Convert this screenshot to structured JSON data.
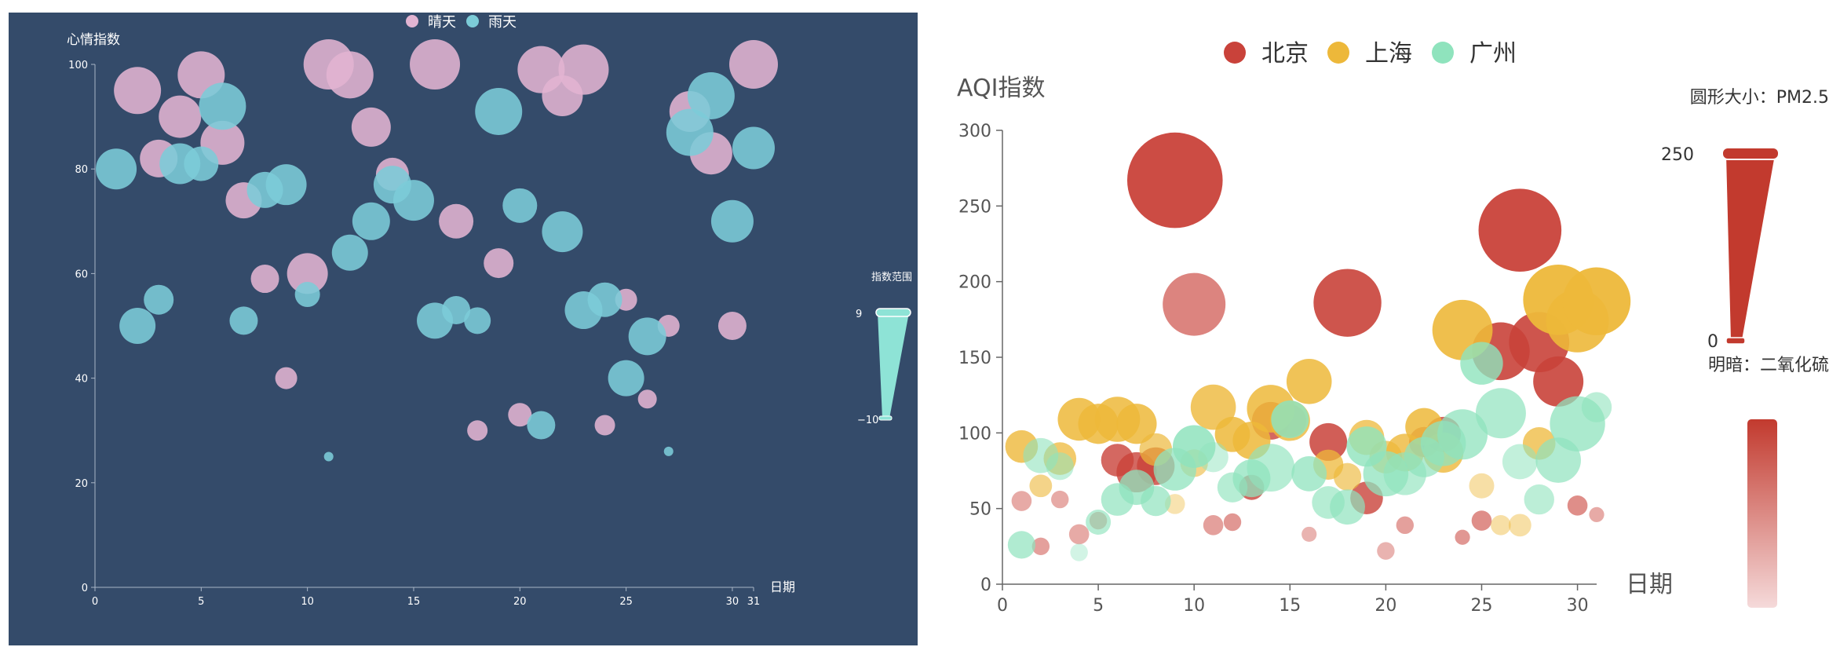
{
  "chart_data": [
    {
      "type": "scatter",
      "variant": "bubble",
      "background": "#344b6a",
      "ylabel": "心情指数",
      "xlabel": "日期",
      "xlim": [
        0,
        31
      ],
      "ylim": [
        0,
        100
      ],
      "x_ticks": [
        0,
        5,
        10,
        15,
        20,
        25,
        30,
        31
      ],
      "y_ticks": [
        0,
        20,
        40,
        60,
        80,
        100
      ],
      "legend": {
        "position": "top-center",
        "items": [
          "晴天",
          "雨天"
        ]
      },
      "visual_map": {
        "title": "指数范围",
        "max": "9",
        "min": "−10",
        "color": "#8ee3d6"
      },
      "series": [
        {
          "name": "晴天",
          "color": "#e2b4d2",
          "points": [
            [
              2,
              95,
              3.0
            ],
            [
              3,
              82,
              2.4
            ],
            [
              4,
              90,
              2.7
            ],
            [
              5,
              98,
              3.0
            ],
            [
              6,
              85,
              2.8
            ],
            [
              7,
              74,
              2.3
            ],
            [
              8,
              59,
              1.8
            ],
            [
              9,
              40,
              1.4
            ],
            [
              10,
              60,
              2.6
            ],
            [
              11,
              100,
              3.2
            ],
            [
              12,
              98,
              3.0
            ],
            [
              13,
              88,
              2.5
            ],
            [
              14,
              79,
              2.1
            ],
            [
              16,
              100,
              3.2
            ],
            [
              17,
              70,
              2.2
            ],
            [
              18,
              30,
              1.3
            ],
            [
              19,
              62,
              1.9
            ],
            [
              20,
              33,
              1.5
            ],
            [
              21,
              99,
              3.0
            ],
            [
              22,
              94,
              2.6
            ],
            [
              23,
              99,
              3.2
            ],
            [
              24,
              31,
              1.3
            ],
            [
              25,
              55,
              1.4
            ],
            [
              26,
              36,
              1.2
            ],
            [
              27,
              50,
              1.4
            ],
            [
              28,
              91,
              2.6
            ],
            [
              29,
              83,
              2.7
            ],
            [
              30,
              50,
              1.8
            ],
            [
              31,
              100,
              3.1
            ]
          ]
        },
        {
          "name": "雨天",
          "color": "#7cccd8",
          "points": [
            [
              1,
              80,
              2.6
            ],
            [
              2,
              50,
              2.3
            ],
            [
              3,
              55,
              1.9
            ],
            [
              4,
              81,
              2.6
            ],
            [
              5,
              81,
              2.2
            ],
            [
              6,
              92,
              3.0
            ],
            [
              7,
              51,
              1.8
            ],
            [
              8,
              76,
              2.3
            ],
            [
              9,
              77,
              2.6
            ],
            [
              10,
              56,
              1.6
            ],
            [
              11,
              25,
              0.6
            ],
            [
              12,
              64,
              2.3
            ],
            [
              13,
              70,
              2.4
            ],
            [
              14,
              77,
              2.4
            ],
            [
              15,
              74,
              2.6
            ],
            [
              16,
              51,
              2.3
            ],
            [
              17,
              53,
              1.8
            ],
            [
              18,
              51,
              1.7
            ],
            [
              19,
              91,
              3.0
            ],
            [
              20,
              73,
              2.2
            ],
            [
              21,
              31,
              1.8
            ],
            [
              22,
              68,
              2.6
            ],
            [
              23,
              53,
              2.4
            ],
            [
              24,
              55,
              2.2
            ],
            [
              25,
              40,
              2.3
            ],
            [
              26,
              48,
              2.4
            ],
            [
              27,
              26,
              0.6
            ],
            [
              28,
              87,
              3.0
            ],
            [
              29,
              94,
              3.0
            ],
            [
              30,
              70,
              2.7
            ],
            [
              31,
              84,
              2.7
            ]
          ]
        }
      ]
    },
    {
      "type": "scatter",
      "variant": "bubble",
      "background": "#ffffff",
      "ylabel": "AQI指数",
      "xlabel": "日期",
      "xlim": [
        0,
        31
      ],
      "ylim": [
        0,
        300
      ],
      "x_ticks": [
        0,
        5,
        10,
        15,
        20,
        25,
        30
      ],
      "y_ticks": [
        0,
        50,
        100,
        150,
        200,
        250,
        300
      ],
      "legend": {
        "position": "top-center",
        "items": [
          "北京",
          "上海",
          "广州"
        ]
      },
      "visual_map_size": {
        "title": "圆形大小：PM2.5",
        "max": "250",
        "min": "0",
        "color": "#c23a2e"
      },
      "visual_map_color": {
        "title": "明暗：二氧化硫",
        "color_high": "#c23a2e",
        "color_low": "#f5dada"
      },
      "series": [
        {
          "name": "北京",
          "color": "#c9423a",
          "points": [
            [
              1,
              55,
              0.8,
              0.45
            ],
            [
              2,
              25,
              0.7,
              0.5
            ],
            [
              3,
              56,
              0.7,
              0.45
            ],
            [
              4,
              33,
              0.8,
              0.45
            ],
            [
              5,
              42,
              0.7,
              0.5
            ],
            [
              6,
              82,
              1.3,
              0.8
            ],
            [
              7,
              74,
              1.6,
              0.8
            ],
            [
              8,
              78,
              1.5,
              0.8
            ],
            [
              9,
              267,
              3.8,
              0.95
            ],
            [
              10,
              185,
              2.5,
              0.65
            ],
            [
              11,
              39,
              0.8,
              0.5
            ],
            [
              12,
              41,
              0.7,
              0.55
            ],
            [
              13,
              64,
              1.0,
              0.8
            ],
            [
              14,
              108,
              1.5,
              0.8
            ],
            [
              15,
              108,
              1.3,
              0.75
            ],
            [
              16,
              33,
              0.6,
              0.4
            ],
            [
              17,
              94,
              1.5,
              0.85
            ],
            [
              18,
              186,
              2.7,
              0.9
            ],
            [
              19,
              57,
              1.3,
              0.8
            ],
            [
              20,
              22,
              0.7,
              0.4
            ],
            [
              21,
              39,
              0.7,
              0.5
            ],
            [
              22,
              94,
              1.2,
              0.75
            ],
            [
              23,
              99,
              1.4,
              0.8
            ],
            [
              24,
              31,
              0.6,
              0.55
            ],
            [
              25,
              42,
              0.8,
              0.6
            ],
            [
              26,
              154,
              2.3,
              0.9
            ],
            [
              27,
              234,
              3.3,
              0.95
            ],
            [
              28,
              160,
              2.4,
              0.9
            ],
            [
              29,
              134,
              2.0,
              0.9
            ],
            [
              30,
              52,
              0.8,
              0.6
            ],
            [
              31,
              46,
              0.6,
              0.45
            ]
          ]
        },
        {
          "name": "上海",
          "color": "#edb83a",
          "points": [
            [
              1,
              91,
              1.3,
              0.8
            ],
            [
              2,
              65,
              0.9,
              0.6
            ],
            [
              3,
              83,
              1.3,
              0.75
            ],
            [
              4,
              109,
              1.7,
              0.85
            ],
            [
              5,
              106,
              1.6,
              0.85
            ],
            [
              6,
              109,
              1.8,
              0.85
            ],
            [
              7,
              106,
              1.6,
              0.85
            ],
            [
              8,
              89,
              1.3,
              0.7
            ],
            [
              9,
              53,
              0.8,
              0.4
            ],
            [
              10,
              80,
              1.1,
              0.6
            ],
            [
              11,
              117,
              1.8,
              0.8
            ],
            [
              12,
              99,
              1.4,
              0.85
            ],
            [
              13,
              95,
              1.5,
              0.85
            ],
            [
              14,
              116,
              1.9,
              0.85
            ],
            [
              15,
              108,
              1.6,
              0.8
            ],
            [
              16,
              134,
              1.8,
              0.85
            ],
            [
              17,
              79,
              1.2,
              0.75
            ],
            [
              18,
              71,
              1.1,
              0.65
            ],
            [
              19,
              97,
              1.4,
              0.75
            ],
            [
              20,
              84,
              1.3,
              0.7
            ],
            [
              21,
              87,
              1.5,
              0.8
            ],
            [
              22,
              104,
              1.5,
              0.85
            ],
            [
              23,
              87,
              1.6,
              0.8
            ],
            [
              24,
              168,
              2.4,
              0.9
            ],
            [
              25,
              65,
              1.0,
              0.45
            ],
            [
              26,
              39,
              0.8,
              0.45
            ],
            [
              27,
              39,
              0.9,
              0.45
            ],
            [
              28,
              93,
              1.3,
              0.75
            ],
            [
              29,
              188,
              2.8,
              0.95
            ],
            [
              30,
              174,
              2.5,
              0.9
            ],
            [
              31,
              187,
              2.7,
              0.95
            ]
          ]
        },
        {
          "name": "广州",
          "color": "#8fe3bd",
          "points": [
            [
              1,
              26,
              1.1,
              0.7
            ],
            [
              2,
              85,
              1.4,
              0.6
            ],
            [
              3,
              78,
              1.1,
              0.55
            ],
            [
              4,
              21,
              0.7,
              0.4
            ],
            [
              5,
              41,
              1.0,
              0.65
            ],
            [
              6,
              56,
              1.3,
              0.7
            ],
            [
              7,
              64,
              1.4,
              0.75
            ],
            [
              8,
              55,
              1.2,
              0.7
            ],
            [
              9,
              76,
              1.7,
              0.75
            ],
            [
              10,
              91,
              1.7,
              0.85
            ],
            [
              11,
              84,
              1.2,
              0.5
            ],
            [
              12,
              64,
              1.2,
              0.65
            ],
            [
              13,
              70,
              1.5,
              0.75
            ],
            [
              14,
              77,
              1.9,
              0.65
            ],
            [
              15,
              109,
              1.5,
              0.85
            ],
            [
              16,
              73,
              1.4,
              0.75
            ],
            [
              17,
              54,
              1.3,
              0.65
            ],
            [
              18,
              51,
              1.4,
              0.7
            ],
            [
              19,
              91,
              1.6,
              0.8
            ],
            [
              20,
              73,
              1.8,
              0.75
            ],
            [
              21,
              73,
              1.7,
              0.65
            ],
            [
              22,
              84,
              1.6,
              0.7
            ],
            [
              23,
              93,
              1.8,
              0.75
            ],
            [
              24,
              99,
              2.0,
              0.75
            ],
            [
              25,
              146,
              1.7,
              0.8
            ],
            [
              26,
              113,
              2.0,
              0.7
            ],
            [
              27,
              81,
              1.4,
              0.55
            ],
            [
              28,
              56,
              1.2,
              0.6
            ],
            [
              29,
              82,
              1.8,
              0.7
            ],
            [
              30,
              106,
              2.2,
              0.75
            ],
            [
              31,
              117,
              1.2,
              0.6
            ]
          ]
        }
      ]
    }
  ]
}
